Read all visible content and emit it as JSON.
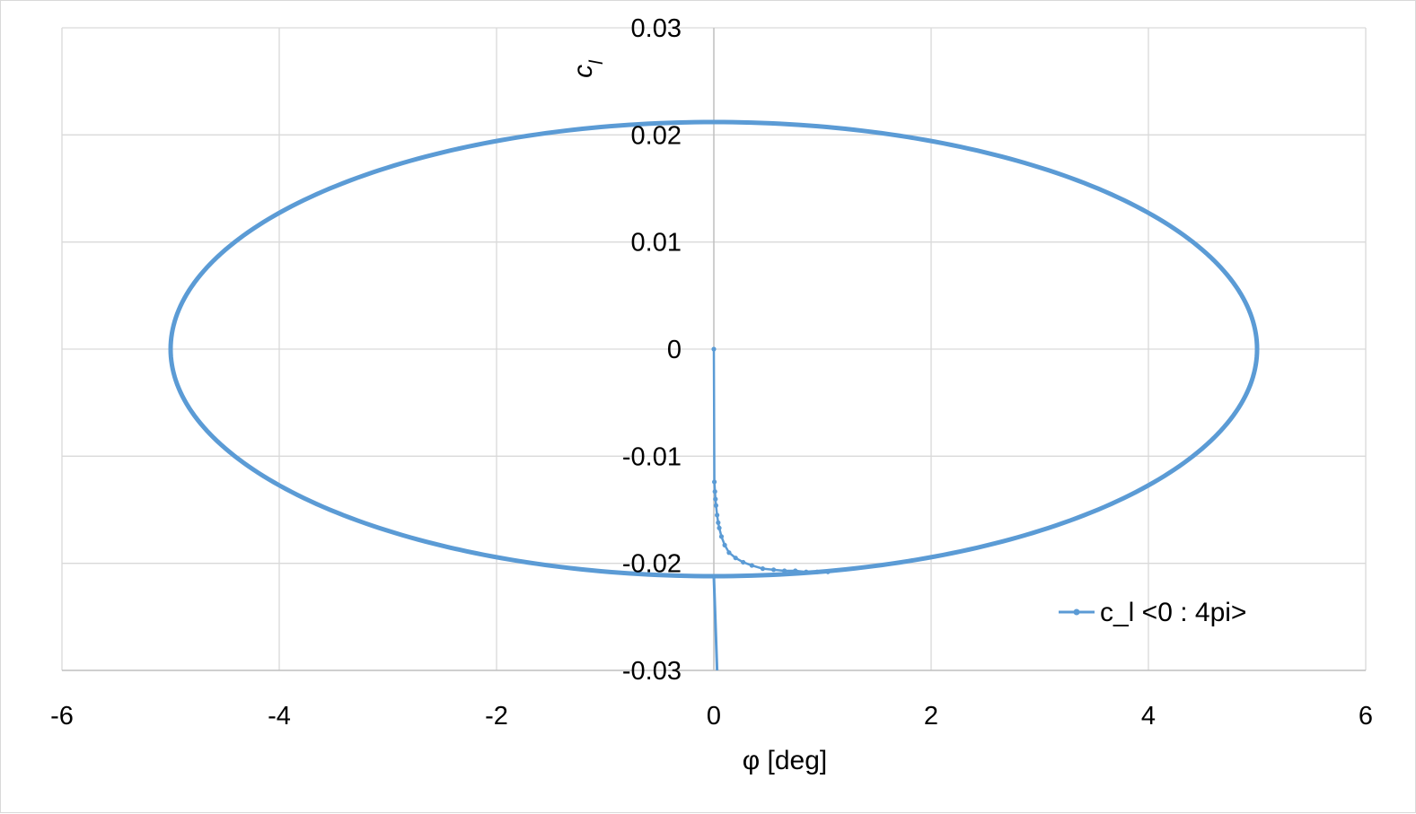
{
  "chart_data": {
    "type": "scatter",
    "title": "",
    "xlabel": "φ [deg]",
    "ylabel": "c_l",
    "ylabel_display": {
      "main": "c",
      "subscript": "l"
    },
    "xlim": [
      -6,
      6
    ],
    "ylim": [
      -0.03,
      0.03
    ],
    "x_ticks": [
      -6,
      -4,
      -2,
      0,
      2,
      4,
      6
    ],
    "y_ticks": [
      0.03,
      0.02,
      0.01,
      0,
      -0.01,
      -0.02,
      -0.03
    ],
    "x_tick_labels": [
      "-6",
      "-4",
      "-2",
      "0",
      "2",
      "4",
      "6"
    ],
    "y_tick_labels": [
      "0.03",
      "0.02",
      "0.01",
      "0",
      "-0.01",
      "-0.02",
      "-0.03"
    ],
    "grid": true,
    "legend_position": "bottom-right",
    "series": [
      {
        "name": "c_l <0 : 4pi>",
        "color": "#5b9bd5",
        "line_style": "solid with point markers",
        "transient": {
          "x": [
            0,
            0.005,
            0.01,
            0.015,
            0.02,
            0.03,
            0.04,
            0.05,
            0.07,
            0.1,
            0.14,
            0.2,
            0.27,
            0.35,
            0.45,
            0.55,
            0.65,
            0.75,
            0.85,
            0.95,
            1.05
          ],
          "y": [
            0,
            -0.0124,
            -0.0133,
            -0.014,
            -0.0146,
            -0.0155,
            -0.0162,
            -0.0167,
            -0.0175,
            -0.0183,
            -0.019,
            -0.0195,
            -0.0199,
            -0.0202,
            -0.0205,
            -0.0206,
            -0.0207,
            -0.0207,
            -0.0208,
            -0.0208,
            -0.0208
          ]
        },
        "steady_ellipse": {
          "x_amplitude": 5.0,
          "y_amplitude": 0.0212,
          "center": [
            0,
            0
          ]
        },
        "vertical_drop": {
          "x": [
            0.0,
            0.03
          ],
          "y": [
            -0.0212,
            -0.03
          ]
        }
      }
    ]
  }
}
